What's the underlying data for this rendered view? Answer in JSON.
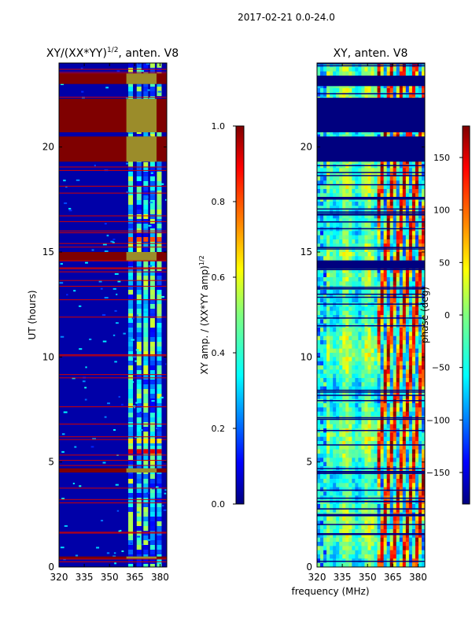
{
  "figure": {
    "suptitle": "2017-02-21 0.0-24.0",
    "xlabel": "frequency (MHz)"
  },
  "chart_data": [
    {
      "type": "heatmap",
      "title": "XY/(XX*YY)",
      "title_superscript": "1/2",
      "title_suffix": ", anten. V8",
      "xlabel": "",
      "ylabel": "UT (hours)",
      "xlim": [
        320,
        384
      ],
      "ylim": [
        0,
        24
      ],
      "xticks": [
        320,
        335,
        350,
        365,
        380
      ],
      "yticks": [
        0,
        5,
        10,
        15,
        20
      ],
      "colorbar": {
        "label": "XY amp. / (XX*YY amp)",
        "label_superscript": "1/2",
        "range": [
          0.0,
          1.0
        ],
        "ticks": [
          "0.0",
          "0.2",
          "0.4",
          "0.6",
          "0.8",
          "1.0"
        ],
        "colormap": "jet"
      },
      "saturated_bands_hours": [
        [
          23.0,
          23.5
        ],
        [
          20.7,
          22.3
        ],
        [
          19.3,
          20.5
        ],
        [
          14.6,
          15.0
        ],
        [
          4.5,
          4.7
        ],
        [
          0.4,
          0.5
        ]
      ],
      "rfi_channels_mhz": [
        363,
        368,
        372,
        376,
        380
      ]
    },
    {
      "type": "heatmap",
      "title": "XY, anten. V8",
      "xlabel": "",
      "ylabel": "",
      "xlim": [
        320,
        384
      ],
      "ylim": [
        0,
        24
      ],
      "xticks": [
        320,
        335,
        350,
        365,
        380
      ],
      "yticks": [
        0,
        5,
        10,
        15,
        20
      ],
      "colorbar": {
        "label": "phase (deg)",
        "range": [
          -180,
          180
        ],
        "ticks": [
          "150",
          "100",
          "50",
          "0",
          "−50",
          "−100",
          "−150"
        ],
        "colormap": "jet"
      },
      "blank_bands_hours": [
        [
          19.3,
          20.5
        ],
        [
          20.7,
          22.3
        ],
        [
          22.9,
          23.4
        ],
        [
          14.2,
          14.6
        ]
      ]
    }
  ],
  "colors": {
    "jet": [
      "#00007f",
      "#0000ff",
      "#007fff",
      "#00ffff",
      "#7fff7f",
      "#ffff00",
      "#ff7f00",
      "#ff0000",
      "#7f0000"
    ]
  }
}
